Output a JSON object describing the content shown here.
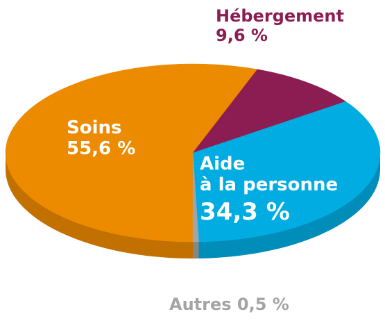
{
  "chart_data": {
    "type": "pie",
    "categories": [
      "Soins",
      "Aide à la personne",
      "Hébergement",
      "Autres"
    ],
    "values": [
      55.6,
      34.3,
      9.6,
      0.5
    ],
    "unit": "%",
    "colors": {
      "soins": "#ec8a00",
      "aide": "#00ace1",
      "hebergement": "#8c1d52",
      "autres": "#a4a4a4"
    },
    "labels": {
      "soins_name": "Soins",
      "soins_value": "55,6 %",
      "aide_name_1": "Aide",
      "aide_name_2": "à la personne",
      "aide_value": "34,3 %",
      "hebergement_name": "Hébergement",
      "hebergement_value": "9,6 %",
      "autres_text": "Autres 0,5 %"
    }
  }
}
